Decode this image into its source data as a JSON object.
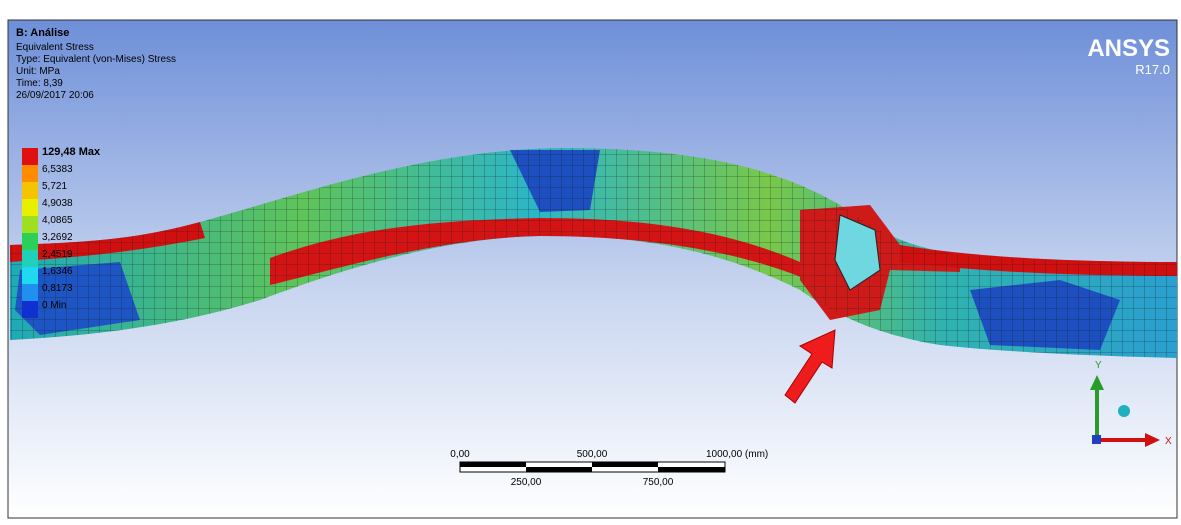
{
  "header": {
    "title": "B: Análise",
    "lines": [
      "Equivalent Stress",
      "Type: Equivalent (von-Mises) Stress",
      "Unit: MPa",
      "Time: 8,39",
      "26/09/2017 20:06"
    ]
  },
  "legend": {
    "levels": [
      "129,48 Max",
      "6,5383",
      "5,721",
      "4,9038",
      "4,0865",
      "3,2692",
      "2,4519",
      "1,6346",
      "0,8173",
      "0 Min"
    ]
  },
  "logo": {
    "brand": "ANSYS",
    "version": "R17.0"
  },
  "scale_bar": {
    "top_labels": [
      "0,00",
      "500,00",
      "1000,00 (mm)"
    ],
    "bottom_labels": [
      "250,00",
      "750,00"
    ]
  },
  "triad": {
    "y": "Y",
    "x": "X"
  }
}
